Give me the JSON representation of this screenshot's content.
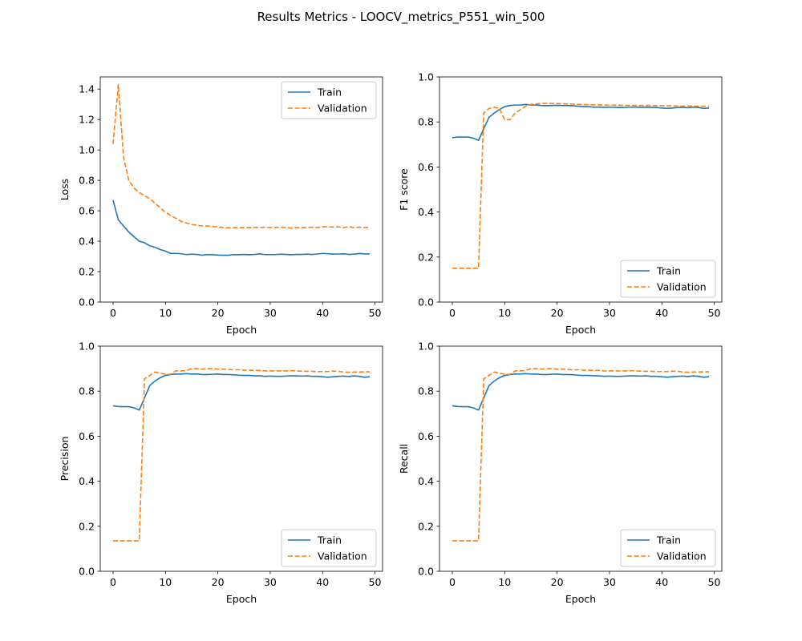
{
  "figure": {
    "title": "Results Metrics - LOOCV_metrics_P551_win_500"
  },
  "colors": {
    "train": "#1f77b4",
    "validation": "#ff7f0e"
  },
  "chart_data": [
    {
      "type": "line",
      "id": "loss",
      "xlabel": "Epoch",
      "ylabel": "Loss",
      "xlim": [
        -2.45,
        51.45
      ],
      "ylim": [
        0.0,
        1.48
      ],
      "xticks": [
        0,
        10,
        20,
        30,
        40,
        50
      ],
      "yticks": [
        0.0,
        0.2,
        0.4,
        0.6,
        0.8,
        1.0,
        1.2,
        1.4
      ],
      "ytick_labels": [
        "0.0",
        "0.2",
        "0.4",
        "0.6",
        "0.8",
        "1.0",
        "1.2",
        "1.4"
      ],
      "legend_position": "upper right",
      "series": [
        {
          "name": "Train",
          "style": "solid",
          "values": [
            0.67,
            0.54,
            0.5,
            0.46,
            0.43,
            0.4,
            0.39,
            0.37,
            0.36,
            0.345,
            0.335,
            0.32,
            0.32,
            0.318,
            0.312,
            0.315,
            0.313,
            0.308,
            0.312,
            0.311,
            0.309,
            0.308,
            0.308,
            0.312,
            0.311,
            0.313,
            0.311,
            0.313,
            0.317,
            0.312,
            0.312,
            0.312,
            0.315,
            0.313,
            0.311,
            0.313,
            0.313,
            0.315,
            0.313,
            0.316,
            0.32,
            0.318,
            0.315,
            0.316,
            0.317,
            0.313,
            0.315,
            0.319,
            0.317,
            0.316
          ]
        },
        {
          "name": "Validation",
          "style": "dashed",
          "values": [
            1.04,
            1.43,
            0.95,
            0.8,
            0.75,
            0.72,
            0.7,
            0.68,
            0.65,
            0.62,
            0.59,
            0.57,
            0.55,
            0.53,
            0.52,
            0.51,
            0.505,
            0.5,
            0.5,
            0.497,
            0.495,
            0.49,
            0.488,
            0.49,
            0.488,
            0.49,
            0.49,
            0.492,
            0.49,
            0.492,
            0.49,
            0.49,
            0.493,
            0.49,
            0.486,
            0.49,
            0.49,
            0.49,
            0.492,
            0.49,
            0.495,
            0.495,
            0.493,
            0.495,
            0.49,
            0.495,
            0.49,
            0.492,
            0.49,
            0.492
          ]
        }
      ]
    },
    {
      "type": "line",
      "id": "f1",
      "xlabel": "Epoch",
      "ylabel": "F1 score",
      "xlim": [
        -2.45,
        51.45
      ],
      "ylim": [
        0.0,
        1.0
      ],
      "xticks": [
        0,
        10,
        20,
        30,
        40,
        50
      ],
      "yticks": [
        0.0,
        0.2,
        0.4,
        0.6,
        0.8,
        1.0
      ],
      "ytick_labels": [
        "0.0",
        "0.2",
        "0.4",
        "0.6",
        "0.8",
        "1.0"
      ],
      "legend_position": "lower right",
      "series": [
        {
          "name": "Train",
          "style": "solid",
          "values": [
            0.73,
            0.733,
            0.733,
            0.733,
            0.728,
            0.718,
            0.77,
            0.82,
            0.84,
            0.855,
            0.868,
            0.873,
            0.875,
            0.875,
            0.878,
            0.875,
            0.875,
            0.873,
            0.872,
            0.873,
            0.874,
            0.873,
            0.873,
            0.872,
            0.87,
            0.868,
            0.868,
            0.866,
            0.866,
            0.865,
            0.866,
            0.865,
            0.864,
            0.865,
            0.866,
            0.866,
            0.865,
            0.866,
            0.865,
            0.864,
            0.862,
            0.86,
            0.862,
            0.864,
            0.865,
            0.863,
            0.866,
            0.864,
            0.86,
            0.862
          ]
        },
        {
          "name": "Validation",
          "style": "dashed",
          "values": [
            0.15,
            0.15,
            0.15,
            0.15,
            0.15,
            0.15,
            0.84,
            0.86,
            0.865,
            0.86,
            0.81,
            0.81,
            0.84,
            0.855,
            0.87,
            0.878,
            0.88,
            0.882,
            0.883,
            0.882,
            0.882,
            0.881,
            0.88,
            0.879,
            0.878,
            0.877,
            0.877,
            0.876,
            0.876,
            0.875,
            0.875,
            0.875,
            0.874,
            0.874,
            0.874,
            0.873,
            0.873,
            0.873,
            0.873,
            0.872,
            0.872,
            0.872,
            0.872,
            0.871,
            0.871,
            0.871,
            0.87,
            0.87,
            0.87,
            0.87
          ]
        }
      ]
    },
    {
      "type": "line",
      "id": "precision",
      "xlabel": "Epoch",
      "ylabel": "Precision",
      "xlim": [
        -2.45,
        51.45
      ],
      "ylim": [
        0.0,
        1.0
      ],
      "xticks": [
        0,
        10,
        20,
        30,
        40,
        50
      ],
      "yticks": [
        0.0,
        0.2,
        0.4,
        0.6,
        0.8,
        1.0
      ],
      "ytick_labels": [
        "0.0",
        "0.2",
        "0.4",
        "0.6",
        "0.8",
        "1.0"
      ],
      "legend_position": "lower right",
      "series": [
        {
          "name": "Train",
          "style": "solid",
          "values": [
            0.735,
            0.732,
            0.731,
            0.731,
            0.726,
            0.716,
            0.77,
            0.825,
            0.845,
            0.86,
            0.87,
            0.874,
            0.876,
            0.876,
            0.878,
            0.876,
            0.876,
            0.874,
            0.874,
            0.875,
            0.876,
            0.874,
            0.874,
            0.873,
            0.871,
            0.87,
            0.87,
            0.868,
            0.868,
            0.866,
            0.867,
            0.866,
            0.866,
            0.867,
            0.868,
            0.868,
            0.867,
            0.868,
            0.866,
            0.866,
            0.864,
            0.862,
            0.864,
            0.866,
            0.867,
            0.865,
            0.868,
            0.866,
            0.862,
            0.864
          ]
        },
        {
          "name": "Validation",
          "style": "dashed",
          "values": [
            0.135,
            0.135,
            0.135,
            0.135,
            0.135,
            0.135,
            0.855,
            0.87,
            0.885,
            0.88,
            0.875,
            0.875,
            0.89,
            0.89,
            0.892,
            0.9,
            0.9,
            0.898,
            0.9,
            0.9,
            0.898,
            0.898,
            0.896,
            0.895,
            0.895,
            0.893,
            0.893,
            0.892,
            0.892,
            0.89,
            0.89,
            0.89,
            0.89,
            0.89,
            0.891,
            0.89,
            0.889,
            0.888,
            0.888,
            0.887,
            0.887,
            0.887,
            0.889,
            0.888,
            0.885,
            0.884,
            0.885,
            0.885,
            0.886,
            0.886
          ]
        }
      ]
    },
    {
      "type": "line",
      "id": "recall",
      "xlabel": "Epoch",
      "ylabel": "Recall",
      "xlim": [
        -2.45,
        51.45
      ],
      "ylim": [
        0.0,
        1.0
      ],
      "xticks": [
        0,
        10,
        20,
        30,
        40,
        50
      ],
      "yticks": [
        0.0,
        0.2,
        0.4,
        0.6,
        0.8,
        1.0
      ],
      "ytick_labels": [
        "0.0",
        "0.2",
        "0.4",
        "0.6",
        "0.8",
        "1.0"
      ],
      "legend_position": "lower right",
      "series": [
        {
          "name": "Train",
          "style": "solid",
          "values": [
            0.735,
            0.732,
            0.731,
            0.731,
            0.726,
            0.716,
            0.77,
            0.825,
            0.845,
            0.86,
            0.87,
            0.874,
            0.876,
            0.876,
            0.878,
            0.876,
            0.876,
            0.874,
            0.874,
            0.875,
            0.876,
            0.874,
            0.874,
            0.873,
            0.871,
            0.87,
            0.87,
            0.868,
            0.868,
            0.866,
            0.867,
            0.866,
            0.866,
            0.867,
            0.868,
            0.868,
            0.867,
            0.868,
            0.866,
            0.866,
            0.864,
            0.862,
            0.864,
            0.866,
            0.867,
            0.865,
            0.868,
            0.866,
            0.862,
            0.864
          ]
        },
        {
          "name": "Validation",
          "style": "dashed",
          "values": [
            0.135,
            0.135,
            0.135,
            0.135,
            0.135,
            0.135,
            0.855,
            0.87,
            0.885,
            0.88,
            0.875,
            0.875,
            0.89,
            0.89,
            0.892,
            0.9,
            0.9,
            0.898,
            0.9,
            0.9,
            0.898,
            0.898,
            0.896,
            0.895,
            0.895,
            0.893,
            0.893,
            0.892,
            0.892,
            0.89,
            0.89,
            0.89,
            0.89,
            0.89,
            0.891,
            0.89,
            0.889,
            0.888,
            0.888,
            0.887,
            0.887,
            0.887,
            0.889,
            0.888,
            0.885,
            0.884,
            0.885,
            0.885,
            0.886,
            0.886
          ]
        }
      ]
    }
  ]
}
